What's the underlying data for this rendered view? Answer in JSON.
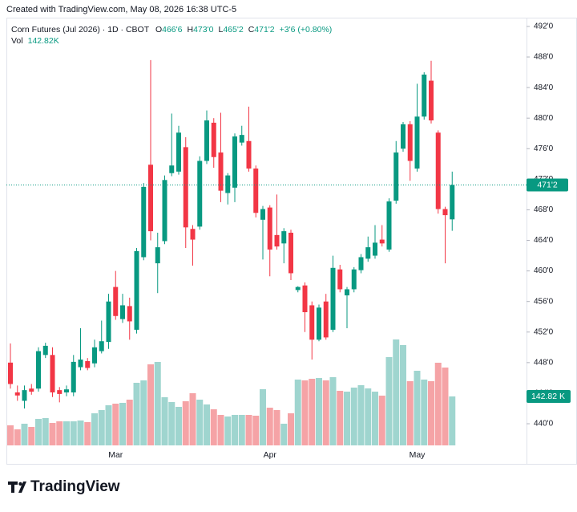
{
  "header": {
    "text": "Created with TradingView.com, May 08, 2026 16:38 UTC-5"
  },
  "legend": {
    "symbol": "Corn Futures (Jul 2026) · 1D · CBOT",
    "fields": [
      {
        "key": "O",
        "value": "466'6"
      },
      {
        "key": "H",
        "value": "473'0"
      },
      {
        "key": "L",
        "value": "465'2"
      },
      {
        "key": "C",
        "value": "471'2"
      }
    ],
    "change": "+3'6 (+0.80%)",
    "volume_key": "Vol",
    "volume": "142.82K"
  },
  "footer": {
    "brand": "TradingView"
  },
  "chart_data": {
    "type": "candlestick",
    "categories": [
      null,
      null,
      null,
      null,
      null,
      null,
      null,
      null,
      null,
      null,
      null,
      null,
      null,
      null,
      null,
      "Mar",
      null,
      null,
      null,
      null,
      null,
      null,
      null,
      null,
      null,
      null,
      null,
      null,
      null,
      null,
      null,
      null,
      null,
      null,
      null,
      null,
      null,
      "Apr",
      null,
      null,
      null,
      null,
      null,
      null,
      null,
      null,
      null,
      null,
      null,
      null,
      null,
      null,
      null,
      null,
      null,
      null,
      null,
      null,
      "May",
      null,
      null,
      null,
      null,
      null
    ],
    "open": [
      448,
      444.1,
      443,
      444.6,
      444.6,
      449,
      449,
      444.4,
      444.1,
      444.1,
      447.4,
      448.2,
      447.9,
      449.5,
      450.7,
      457.9,
      453.7,
      455.4,
      452.3,
      461.8,
      473.9,
      461,
      463.9,
      472.8,
      473,
      476.2,
      465.5,
      465.8,
      474.4,
      479.4,
      475.5,
      470.2,
      470.9,
      476.8,
      477,
      473.4,
      466.7,
      468.3,
      464.7,
      463.6,
      465,
      457.5,
      458.1,
      455.5,
      451,
      456,
      452.3,
      460.2,
      456.8,
      457.6,
      460.1,
      461.6,
      462,
      464.1,
      462.8,
      469.2,
      476,
      479.2,
      473.4,
      480.2,
      484.9,
      478.1,
      468.1,
      466.75
    ],
    "high": [
      450.5,
      445,
      445,
      445.2,
      450,
      450.6,
      450,
      444.8,
      445,
      449,
      452.5,
      448.6,
      451,
      453.5,
      457,
      460,
      457,
      456.5,
      463,
      471.5,
      487.6,
      465,
      472.5,
      480.6,
      479,
      477.5,
      466,
      475,
      481,
      480,
      480.7,
      472.8,
      478,
      479,
      481.5,
      473.8,
      468.5,
      468.6,
      470,
      465.6,
      465.4,
      458,
      458.5,
      456,
      455.6,
      457,
      462,
      460.8,
      457.9,
      460.5,
      462.2,
      464.5,
      466,
      466,
      469.5,
      477,
      479.5,
      479.6,
      484.5,
      486,
      487.5,
      478.4,
      468.4,
      473
    ],
    "low": [
      444.6,
      443,
      442,
      443.8,
      444.2,
      448.6,
      443.5,
      442.8,
      443.6,
      443.6,
      447,
      447,
      447.4,
      449.2,
      449.8,
      453.6,
      453.2,
      451,
      451.8,
      461.4,
      464,
      457.1,
      463.5,
      472.4,
      472.6,
      463,
      460.7,
      465.4,
      474,
      473.5,
      469,
      468.7,
      469,
      476.4,
      473,
      467,
      461.5,
      459.3,
      462.8,
      461,
      458.8,
      457.2,
      452,
      448.4,
      450.8,
      451,
      452,
      457.2,
      452.5,
      457.2,
      459.7,
      461.2,
      461.6,
      463.2,
      462.5,
      468.8,
      475.6,
      471.8,
      473,
      479.8,
      479.3,
      467.5,
      461,
      465.25
    ],
    "close": [
      445.2,
      443.7,
      444.4,
      444.2,
      449.5,
      450.2,
      444.1,
      443.9,
      444.5,
      448.1,
      448.4,
      447.3,
      450,
      450.8,
      456,
      454.1,
      455.5,
      453.4,
      462.6,
      471,
      465.2,
      463.1,
      471.9,
      473.8,
      478.1,
      465.7,
      464.1,
      474.4,
      479.7,
      474.9,
      470.5,
      472.5,
      477.6,
      477.8,
      473.4,
      467.6,
      468.1,
      462.8,
      463.2,
      465.2,
      459.7,
      457.9,
      454.6,
      451,
      455.2,
      451.3,
      460.4,
      457.6,
      457.6,
      460.2,
      461.8,
      463.1,
      463.7,
      463.6,
      469.1,
      475.5,
      479.2,
      474.4,
      480.2,
      485.7,
      479.7,
      468.1,
      467.3,
      471.25
    ],
    "volume": [
      58.5,
      46.8,
      63.2,
      53.8,
      77.3,
      79.6,
      65.5,
      70.2,
      70.2,
      70.2,
      72.6,
      67.9,
      93.6,
      103.0,
      117.1,
      121.7,
      124.1,
      133.4,
      182.6,
      189.6,
      236.4,
      243.5,
      140.5,
      126.4,
      112.4,
      128.8,
      152.2,
      133.4,
      119.4,
      105.3,
      89.0,
      84.3,
      89.0,
      89.0,
      89.0,
      86.6,
      163.9,
      110.0,
      103.0,
      63.2,
      93.6,
      192.0,
      189.6,
      194.3,
      196.6,
      189.6,
      199.0,
      159.2,
      156.8,
      168.6,
      175.6,
      166.2,
      156.8,
      145.1,
      257.5,
      309.0,
      292.6,
      187.3,
      217.7,
      192.0,
      187.3,
      241.1,
      227.1,
      142.82
    ],
    "volume_last_label": "142.82 K",
    "last_price": {
      "value": 471.25,
      "label": "471'2"
    },
    "up_color": "#089981",
    "down_color": "#f23645",
    "volume_up_color": "#9fd5cf",
    "volume_down_color": "#f5a3a6",
    "ylim": [
      434.75,
      493.15
    ],
    "yticks": [
      {
        "value": 440,
        "label": "440'0"
      },
      {
        "value": 444,
        "label": "444'0"
      },
      {
        "value": 448,
        "label": "448'0"
      },
      {
        "value": 452,
        "label": "452'0"
      },
      {
        "value": 456,
        "label": "456'0"
      },
      {
        "value": 460,
        "label": "460'0"
      },
      {
        "value": 464,
        "label": "464'0"
      },
      {
        "value": 468,
        "label": "468'0"
      },
      {
        "value": 472,
        "label": "472'0"
      },
      {
        "value": 476,
        "label": "476'0"
      },
      {
        "value": 480,
        "label": "480'0"
      },
      {
        "value": 484,
        "label": "484'0"
      },
      {
        "value": 488,
        "label": "488'0"
      },
      {
        "value": 492,
        "label": "492'0"
      }
    ],
    "grid": false
  }
}
